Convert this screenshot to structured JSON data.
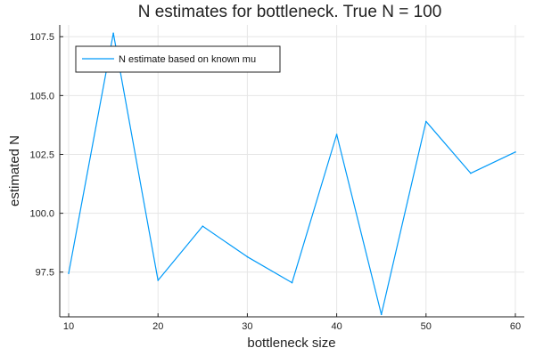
{
  "chart_data": {
    "type": "line",
    "title": "N estimates for bottleneck. True N = 100",
    "xlabel": "bottleneck size",
    "ylabel": "estimated N",
    "xlim": [
      9,
      61
    ],
    "ylim": [
      95.6,
      108
    ],
    "xticks": [
      10,
      20,
      30,
      40,
      50,
      60
    ],
    "yticks": [
      97.5,
      100.0,
      102.5,
      105.0,
      107.5
    ],
    "xtick_labels": [
      "10",
      "20",
      "30",
      "40",
      "50",
      "60"
    ],
    "ytick_labels": [
      "97.5",
      "100.0",
      "102.5",
      "105.0",
      "107.5"
    ],
    "grid": true,
    "legend_position": "top-left",
    "series": [
      {
        "name": "N estimate based on known mu",
        "color": "#009af9",
        "x": [
          10,
          15,
          20,
          25,
          30,
          35,
          40,
          45,
          50,
          55,
          60
        ],
        "y": [
          97.45,
          107.65,
          97.15,
          99.45,
          98.15,
          97.05,
          103.35,
          95.7,
          103.9,
          101.7,
          102.6
        ]
      }
    ]
  }
}
